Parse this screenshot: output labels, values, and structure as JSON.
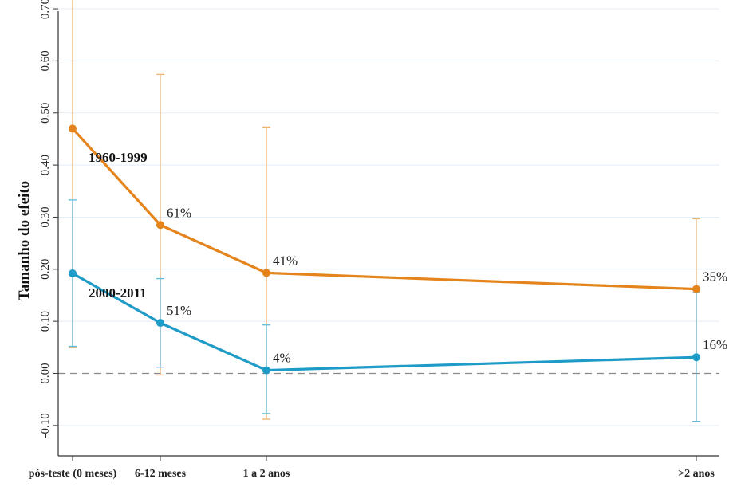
{
  "colors": {
    "series_orange": "#e5841c",
    "series_blue": "#1f9bc7",
    "errorbar_orange": "#f2b36e",
    "errorbar_blue": "#5fbcdc",
    "gridline": "#e4eef5",
    "zero_line": "#8a8a8a",
    "axis": "#333333"
  },
  "chart_data": {
    "type": "line",
    "title": "",
    "xlabel": "",
    "ylabel": "Tamanho do efeito",
    "x_positions": [
      0,
      6,
      18,
      60
    ],
    "categories": [
      "pós-teste (0 meses)",
      "6-12 meses",
      "1 a 2 anos",
      ">2 anos"
    ],
    "ylim": [
      -0.12,
      0.76
    ],
    "y_ticks": [
      -0.1,
      0.0,
      0.1,
      0.2,
      0.3,
      0.4,
      0.5,
      0.6,
      0.7
    ],
    "y_tick_labels": [
      "-0.10",
      "0.00",
      "0.10",
      "0.20",
      "0.30",
      "0.40",
      "0.50",
      "0.60",
      "0.70"
    ],
    "grid": true,
    "zero_line": "dashed",
    "legend": "none",
    "series": [
      {
        "name": "1960-1999",
        "color_key": "series_orange",
        "errorbar_color_key": "errorbar_orange",
        "values": [
          0.47,
          0.285,
          0.193,
          0.162
        ],
        "lower": [
          0.05,
          -0.003,
          -0.088,
          0.03
        ],
        "upper": [
          0.743,
          0.574,
          0.473,
          0.297
        ],
        "point_labels": [
          "",
          "61%",
          "41%",
          "35%"
        ]
      },
      {
        "name": "2000-2011",
        "color_key": "series_blue",
        "errorbar_color_key": "errorbar_blue",
        "values": [
          0.192,
          0.097,
          0.006,
          0.031
        ],
        "lower": [
          0.052,
          0.012,
          -0.077,
          -0.092
        ],
        "upper": [
          0.333,
          0.182,
          0.093,
          0.155
        ],
        "point_labels": [
          "",
          "51%",
          "4%",
          "16%"
        ]
      }
    ]
  }
}
